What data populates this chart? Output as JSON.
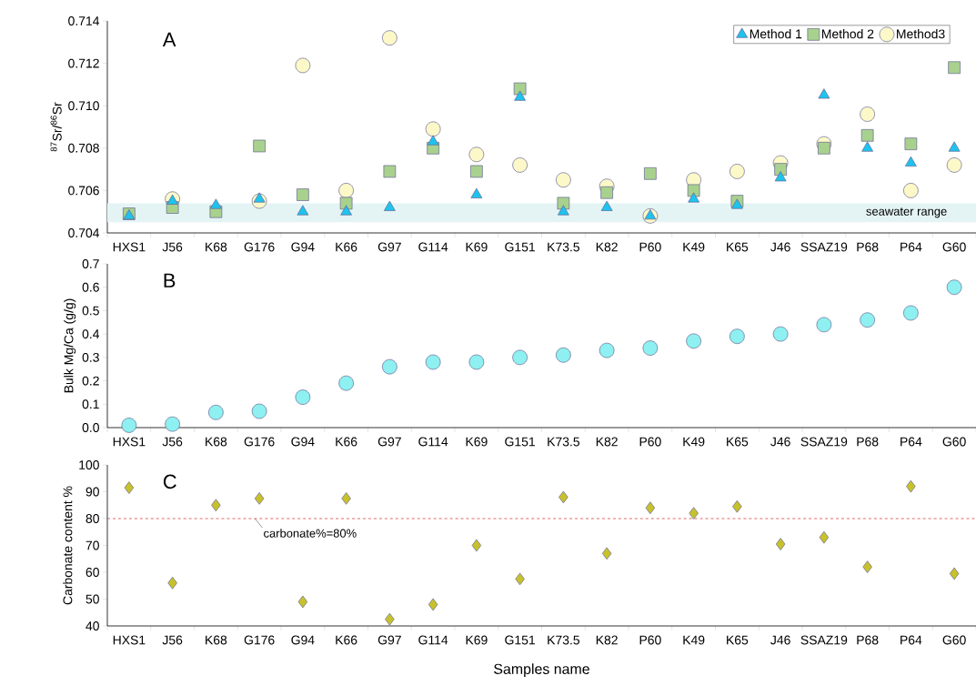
{
  "chart_data": [
    {
      "type": "scatter",
      "ylabel": "$^{87}$Sr/$^{86}$Sr",
      "annotations": [
        "A"
      ],
      "categories": [
        "HXS1",
        "J56",
        "K68",
        "G176",
        "G94",
        "K66",
        "G97",
        "G114",
        "K69",
        "G151",
        "K73.5",
        "K82",
        "P60",
        "K49",
        "K65",
        "J46",
        "SSAZ19",
        "P68",
        "P64",
        "G60"
      ],
      "series": [
        {
          "name": "Method 1",
          "color": "#1ec3ee",
          "marker": "triangle",
          "values": [
            0.7048,
            0.7055,
            0.7053,
            0.7056,
            0.705,
            0.705,
            0.7052,
            0.7083,
            0.7058,
            0.7104,
            0.705,
            0.7052,
            0.7048,
            0.7056,
            0.7053,
            0.7066,
            0.7105,
            0.708,
            0.7073,
            0.708
          ]
        },
        {
          "name": "Method 2",
          "color": "#a9d18e",
          "marker": "square",
          "values": [
            0.7049,
            0.7052,
            0.705,
            0.7081,
            0.7058,
            0.7054,
            0.7069,
            0.708,
            0.7069,
            0.7108,
            0.7054,
            0.7059,
            0.7068,
            0.706,
            0.7055,
            0.707,
            0.708,
            0.7086,
            0.7082,
            0.7118
          ]
        },
        {
          "name": "Method3",
          "color": "#fdf8c8",
          "marker": "circle",
          "values": [
            null,
            0.7056,
            null,
            0.7055,
            0.7119,
            0.706,
            0.7132,
            0.7089,
            0.7077,
            0.7072,
            0.7065,
            0.7062,
            0.7048,
            0.7065,
            0.7069,
            0.7073,
            0.7082,
            0.7096,
            0.706,
            0.7072
          ]
        }
      ],
      "ylim": [
        0.704,
        0.714
      ],
      "yticks": [
        {
          "value": 0.704,
          "label": "0.704"
        },
        {
          "value": 0.706,
          "label": "0.706"
        },
        {
          "value": 0.708,
          "label": "0.708"
        },
        {
          "value": 0.71,
          "label": "0.710"
        },
        {
          "value": 0.712,
          "label": "0.712"
        },
        {
          "value": 0.714,
          "label": "0.714"
        }
      ],
      "bands": [
        {
          "axis": "y",
          "from": 0.7045,
          "to": 0.7054,
          "label": "seawater range",
          "color": "#e4f4f5"
        }
      ],
      "legend": "top right"
    },
    {
      "type": "scatter",
      "ylabel": "Bulk Mg/Ca (g/g)",
      "annotations": [
        "B"
      ],
      "categories": [
        "HXS1",
        "J56",
        "K68",
        "G176",
        "G94",
        "K66",
        "G97",
        "G114",
        "K69",
        "G151",
        "K73.5",
        "K82",
        "P60",
        "K49",
        "K65",
        "J46",
        "SSAZ19",
        "P68",
        "P64",
        "G60"
      ],
      "values": [
        0.01,
        0.015,
        0.065,
        0.07,
        0.13,
        0.19,
        0.26,
        0.28,
        0.28,
        0.3,
        0.31,
        0.33,
        0.34,
        0.37,
        0.39,
        0.4,
        0.44,
        0.46,
        0.49,
        0.6
      ],
      "color": "#8ef0f0",
      "marker": "circle",
      "ylim": [
        0,
        0.7
      ],
      "yticks": [
        {
          "value": 0,
          "label": "0.0"
        },
        {
          "value": 0.1,
          "label": "0.1"
        },
        {
          "value": 0.2,
          "label": "0.2"
        },
        {
          "value": 0.3,
          "label": "0.3"
        },
        {
          "value": 0.4,
          "label": "0.4"
        },
        {
          "value": 0.5,
          "label": "0.5"
        },
        {
          "value": 0.6,
          "label": "0.6"
        },
        {
          "value": 0.7,
          "label": "0.7"
        }
      ]
    },
    {
      "type": "scatter",
      "ylabel": "Carbonate content %",
      "xlabel": "Samples name",
      "annotations": [
        "C"
      ],
      "categories": [
        "HXS1",
        "J56",
        "K68",
        "G176",
        "G94",
        "K66",
        "G97",
        "G114",
        "K69",
        "G151",
        "K73.5",
        "K82",
        "P60",
        "K49",
        "K65",
        "J46",
        "SSAZ19",
        "P68",
        "P64",
        "G60"
      ],
      "values": [
        91.5,
        56,
        85,
        87.5,
        49,
        87.5,
        42.5,
        48,
        70,
        57.5,
        88,
        67,
        84,
        82,
        84.5,
        70.5,
        73,
        62,
        92,
        59.5
      ],
      "color": "#c8c22a",
      "marker": "diamond",
      "ylim": [
        40,
        100
      ],
      "yticks": [
        40,
        50,
        60,
        70,
        80,
        90,
        100
      ],
      "ref_lines": [
        {
          "axis": "y",
          "value": 80,
          "label": "carbonate%=80%",
          "color": "#d9413f",
          "line_style": "dashed"
        }
      ]
    }
  ]
}
